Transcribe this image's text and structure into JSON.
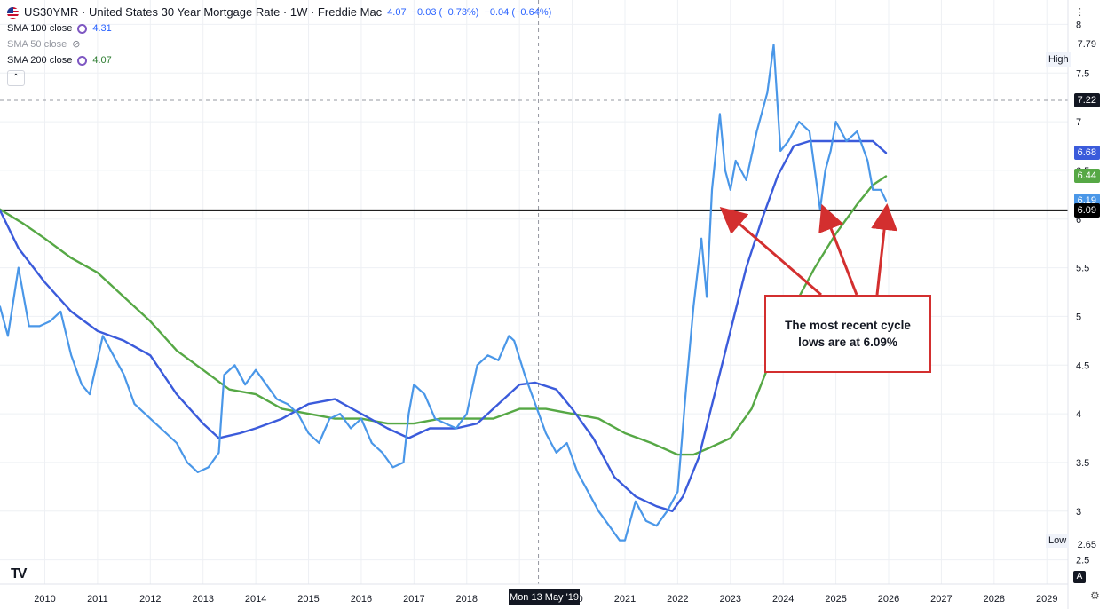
{
  "header": {
    "title": "US30YMR · United States 30 Year Mortgage Rate · 1W · Freddie Mac",
    "last": "4.07",
    "change": "−0.03 (−0.73%)",
    "change2": "−0.04 (−0.64%)"
  },
  "indicators": [
    {
      "label": "SMA 100 close",
      "value": "4.31",
      "color": "#3b5bdb"
    },
    {
      "label": "SMA 50 close",
      "value": "",
      "hidden": true
    },
    {
      "label": "SMA 200 close",
      "value": "4.07",
      "color": "#4caf50"
    }
  ],
  "colors": {
    "price": "#4a97e8",
    "sma100": "#3b5bdb",
    "sma200": "#56a845",
    "annotation": "#d32f2f",
    "hline": "#000000"
  },
  "annotation": {
    "text": "The most recent cycle lows are at 6.09%"
  },
  "crosshair_date": "Mon 13 May '19",
  "high_label": "High",
  "low_label": "Low",
  "badges": {
    "high": "7.79",
    "dashed": "7.22",
    "sma100": "6.68",
    "sma200": "6.44",
    "price": "6.19",
    "hline": "6.09",
    "low": "2.65"
  },
  "controls": {
    "auto": "A",
    "logo": "TV"
  },
  "chart_data": {
    "type": "line",
    "xlabel": "",
    "ylabel": "",
    "ylim": [
      2.25,
      8.25
    ],
    "xlim": [
      2009.15,
      2029.4
    ],
    "y_ticks": [
      "2.5",
      "3",
      "3.5",
      "4",
      "4.5",
      "5",
      "5.5",
      "6",
      "6.5",
      "7",
      "7.5",
      "8"
    ],
    "x_ticks": [
      "2010",
      "2011",
      "2012",
      "2013",
      "2014",
      "2015",
      "2016",
      "2017",
      "2018",
      "2019",
      "2020",
      "2021",
      "2022",
      "2023",
      "2024",
      "2025",
      "2026",
      "2027",
      "2028",
      "2029"
    ],
    "horizontal_line": 6.09,
    "dashed_line": 7.22,
    "series": [
      {
        "name": "US30YMR",
        "x": [
          2009.15,
          2009.3,
          2009.5,
          2009.7,
          2009.9,
          2010.1,
          2010.3,
          2010.5,
          2010.7,
          2010.85,
          2011.1,
          2011.3,
          2011.5,
          2011.7,
          2011.9,
          2012.1,
          2012.3,
          2012.5,
          2012.7,
          2012.9,
          2013.1,
          2013.3,
          2013.4,
          2013.6,
          2013.8,
          2014.0,
          2014.2,
          2014.4,
          2014.6,
          2014.8,
          2015.0,
          2015.2,
          2015.4,
          2015.6,
          2015.8,
          2016.0,
          2016.2,
          2016.4,
          2016.6,
          2016.8,
          2016.9,
          2017.0,
          2017.2,
          2017.4,
          2017.6,
          2017.8,
          2018.0,
          2018.2,
          2018.4,
          2018.6,
          2018.8,
          2018.9,
          2019.1,
          2019.3,
          2019.5,
          2019.7,
          2019.9,
          2020.1,
          2020.3,
          2020.5,
          2020.7,
          2020.9,
          2021.0,
          2021.2,
          2021.4,
          2021.6,
          2021.8,
          2022.0,
          2022.15,
          2022.3,
          2022.45,
          2022.55,
          2022.65,
          2022.8,
          2022.9,
          2023.0,
          2023.1,
          2023.3,
          2023.5,
          2023.7,
          2023.82,
          2023.95,
          2024.1,
          2024.3,
          2024.5,
          2024.7,
          2024.8,
          2024.9,
          2025.0,
          2025.2,
          2025.4,
          2025.6,
          2025.7,
          2025.85,
          2025.95
        ],
        "values": [
          5.1,
          4.8,
          5.5,
          4.9,
          4.9,
          4.95,
          5.05,
          4.6,
          4.3,
          4.2,
          4.8,
          4.6,
          4.4,
          4.1,
          4.0,
          3.9,
          3.8,
          3.7,
          3.5,
          3.4,
          3.45,
          3.6,
          4.4,
          4.5,
          4.3,
          4.45,
          4.3,
          4.15,
          4.1,
          4.0,
          3.8,
          3.7,
          3.95,
          4.0,
          3.85,
          3.95,
          3.7,
          3.6,
          3.45,
          3.5,
          4.0,
          4.3,
          4.2,
          3.95,
          3.9,
          3.85,
          4.0,
          4.5,
          4.6,
          4.55,
          4.8,
          4.75,
          4.4,
          4.1,
          3.8,
          3.6,
          3.7,
          3.4,
          3.2,
          3.0,
          2.85,
          2.7,
          2.7,
          3.1,
          2.9,
          2.85,
          3.0,
          3.2,
          4.2,
          5.1,
          5.8,
          5.2,
          6.3,
          7.08,
          6.5,
          6.3,
          6.6,
          6.4,
          6.9,
          7.3,
          7.79,
          6.7,
          6.8,
          7.0,
          6.9,
          6.1,
          6.5,
          6.7,
          7.0,
          6.8,
          6.9,
          6.6,
          6.3,
          6.3,
          6.19
        ]
      },
      {
        "name": "SMA 100",
        "x": [
          2009.15,
          2009.5,
          2010.0,
          2010.5,
          2011.0,
          2011.5,
          2012.0,
          2012.5,
          2013.0,
          2013.3,
          2013.7,
          2014.0,
          2014.5,
          2015.0,
          2015.5,
          2016.0,
          2016.5,
          2016.9,
          2017.3,
          2017.8,
          2018.2,
          2018.6,
          2019.0,
          2019.3,
          2019.7,
          2020.0,
          2020.4,
          2020.8,
          2021.2,
          2021.6,
          2021.9,
          2022.1,
          2022.4,
          2022.7,
          2023.0,
          2023.3,
          2023.6,
          2023.9,
          2024.2,
          2024.5,
          2024.8,
          2025.1,
          2025.4,
          2025.7,
          2025.95
        ],
        "values": [
          6.09,
          5.7,
          5.35,
          5.05,
          4.85,
          4.75,
          4.6,
          4.2,
          3.9,
          3.75,
          3.8,
          3.85,
          3.95,
          4.1,
          4.15,
          4.0,
          3.85,
          3.75,
          3.85,
          3.85,
          3.9,
          4.1,
          4.3,
          4.32,
          4.25,
          4.05,
          3.75,
          3.35,
          3.15,
          3.05,
          3.0,
          3.15,
          3.55,
          4.2,
          4.85,
          5.5,
          6.0,
          6.45,
          6.75,
          6.8,
          6.8,
          6.8,
          6.8,
          6.8,
          6.68
        ]
      },
      {
        "name": "SMA 200",
        "x": [
          2009.15,
          2009.6,
          2010.0,
          2010.5,
          2011.0,
          2011.5,
          2012.0,
          2012.5,
          2013.0,
          2013.5,
          2014.0,
          2014.5,
          2015.0,
          2015.5,
          2016.0,
          2016.5,
          2017.0,
          2017.5,
          2018.0,
          2018.5,
          2019.0,
          2019.5,
          2020.0,
          2020.5,
          2021.0,
          2021.5,
          2022.0,
          2022.3,
          2022.6,
          2023.0,
          2023.4,
          2023.8,
          2024.2,
          2024.6,
          2025.0,
          2025.4,
          2025.7,
          2025.95
        ],
        "values": [
          6.1,
          5.95,
          5.8,
          5.6,
          5.45,
          5.2,
          4.95,
          4.65,
          4.45,
          4.25,
          4.2,
          4.05,
          4.0,
          3.95,
          3.95,
          3.9,
          3.9,
          3.95,
          3.95,
          3.95,
          4.05,
          4.05,
          4.0,
          3.95,
          3.8,
          3.7,
          3.58,
          3.58,
          3.65,
          3.75,
          4.05,
          4.6,
          5.1,
          5.5,
          5.85,
          6.15,
          6.35,
          6.44
        ]
      }
    ]
  }
}
